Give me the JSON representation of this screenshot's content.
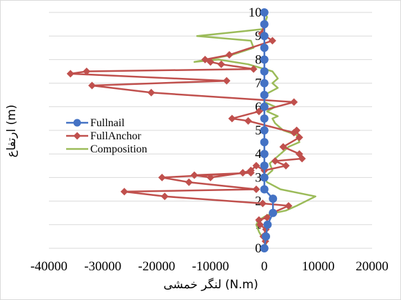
{
  "chart_data": {
    "type": "line",
    "xlabel": "لنگر خمشی (N.m)",
    "ylabel": "ارتفاع  (m)",
    "xlim": [
      -40000,
      20000
    ],
    "ylim": [
      0,
      10
    ],
    "xticks": [
      -40000,
      -30000,
      -20000,
      -10000,
      0,
      10000,
      20000
    ],
    "yticks": [
      0,
      1,
      2,
      3,
      4,
      5,
      6,
      7,
      8,
      9,
      10
    ],
    "xtick_labels": [
      "-40000",
      "-30000",
      "-20000",
      "-10000",
      "0",
      "10000",
      "20000"
    ],
    "ytick_labels": [
      "0",
      "1",
      "2",
      "3",
      "4",
      "5",
      "6",
      "7",
      "8",
      "9",
      "10"
    ],
    "grid": "horizontal",
    "legend_position": "center-left",
    "series": [
      {
        "name": "Fullnail",
        "color": "#4472c4",
        "marker": "circle",
        "points": [
          [
            0,
            0
          ],
          [
            300,
            0.5
          ],
          [
            600,
            1
          ],
          [
            1600,
            1.5
          ],
          [
            1600,
            2.1
          ],
          [
            0,
            2.5
          ],
          [
            0,
            3
          ],
          [
            0,
            3.5
          ],
          [
            0,
            4
          ],
          [
            0,
            4.5
          ],
          [
            0,
            5
          ],
          [
            0,
            5.5
          ],
          [
            0,
            6
          ],
          [
            0,
            6.5
          ],
          [
            0,
            7
          ],
          [
            0,
            7.5
          ],
          [
            0,
            8
          ],
          [
            0,
            8.5
          ],
          [
            0,
            9
          ],
          [
            0,
            9.5
          ],
          [
            0,
            10
          ]
        ]
      },
      {
        "name": "FullAnchor",
        "color": "#c0504d",
        "marker": "diamond",
        "points": [
          [
            0,
            0
          ],
          [
            200,
            0.3
          ],
          [
            -200,
            0.5
          ],
          [
            300,
            0.8
          ],
          [
            -800,
            1
          ],
          [
            -1000,
            1.2
          ],
          [
            500,
            1.3
          ],
          [
            1500,
            1.5
          ],
          [
            4500,
            1.8
          ],
          [
            -300,
            1.9
          ],
          [
            -18500,
            2.2
          ],
          [
            -26000,
            2.4
          ],
          [
            -1500,
            2.5
          ],
          [
            -14000,
            2.8
          ],
          [
            -19000,
            3
          ],
          [
            -2500,
            3.2
          ],
          [
            -13000,
            3.1
          ],
          [
            -10000,
            3
          ],
          [
            -4000,
            3.2
          ],
          [
            -2500,
            3.3
          ],
          [
            -1500,
            3.5
          ],
          [
            0,
            3.3
          ],
          [
            4000,
            3.5
          ],
          [
            2000,
            3.7
          ],
          [
            7000,
            3.8
          ],
          [
            6500,
            4
          ],
          [
            3500,
            4.3
          ],
          [
            6500,
            4.7
          ],
          [
            6000,
            5
          ],
          [
            5500,
            4.9
          ],
          [
            -3000,
            5.4
          ],
          [
            -6000,
            5.5
          ],
          [
            -1000,
            5.8
          ],
          [
            5500,
            6.2
          ],
          [
            -21000,
            6.6
          ],
          [
            -32000,
            6.9
          ],
          [
            -7000,
            7.1
          ],
          [
            -36000,
            7.4
          ],
          [
            -33000,
            7.5
          ],
          [
            -2000,
            7.6
          ],
          [
            -8000,
            7.8
          ],
          [
            -10000,
            7.9
          ],
          [
            -11000,
            8
          ],
          [
            -6500,
            8.2
          ],
          [
            1500,
            8.8
          ],
          [
            -500,
            9.1
          ],
          [
            0,
            9.5
          ],
          [
            0,
            10
          ]
        ]
      },
      {
        "name": "Composition",
        "color": "#9bbb59",
        "marker": "none",
        "points": [
          [
            0,
            0
          ],
          [
            500,
            0.3
          ],
          [
            -500,
            0.5
          ],
          [
            -1000,
            0.7
          ],
          [
            -1500,
            1
          ],
          [
            -1000,
            1.2
          ],
          [
            500,
            1.4
          ],
          [
            2000,
            1.5
          ],
          [
            4000,
            1.6
          ],
          [
            6000,
            1.8
          ],
          [
            9500,
            2.2
          ],
          [
            3000,
            2.5
          ],
          [
            500,
            2.8
          ],
          [
            0,
            3
          ],
          [
            1500,
            3.3
          ],
          [
            1000,
            3.6
          ],
          [
            2000,
            3.8
          ],
          [
            3000,
            4
          ],
          [
            4500,
            4.3
          ],
          [
            6500,
            4.5
          ],
          [
            6000,
            4.8
          ],
          [
            3500,
            5
          ],
          [
            2000,
            5.3
          ],
          [
            1500,
            5.5
          ],
          [
            2500,
            5.6
          ],
          [
            500,
            5.8
          ],
          [
            2000,
            6
          ],
          [
            0,
            6.2
          ],
          [
            0,
            6.5
          ],
          [
            2500,
            6.8
          ],
          [
            1500,
            7
          ],
          [
            2500,
            7.2
          ],
          [
            1500,
            7.5
          ],
          [
            -3000,
            7.8
          ],
          [
            -8500,
            8
          ],
          [
            -13000,
            7.9
          ],
          [
            -6000,
            8.2
          ],
          [
            -2000,
            8.5
          ],
          [
            -2500,
            8.8
          ],
          [
            -12500,
            9
          ],
          [
            -4000,
            9.2
          ],
          [
            0,
            9.3
          ],
          [
            0,
            9.5
          ],
          [
            500,
            9.8
          ],
          [
            0,
            10
          ]
        ]
      }
    ]
  }
}
